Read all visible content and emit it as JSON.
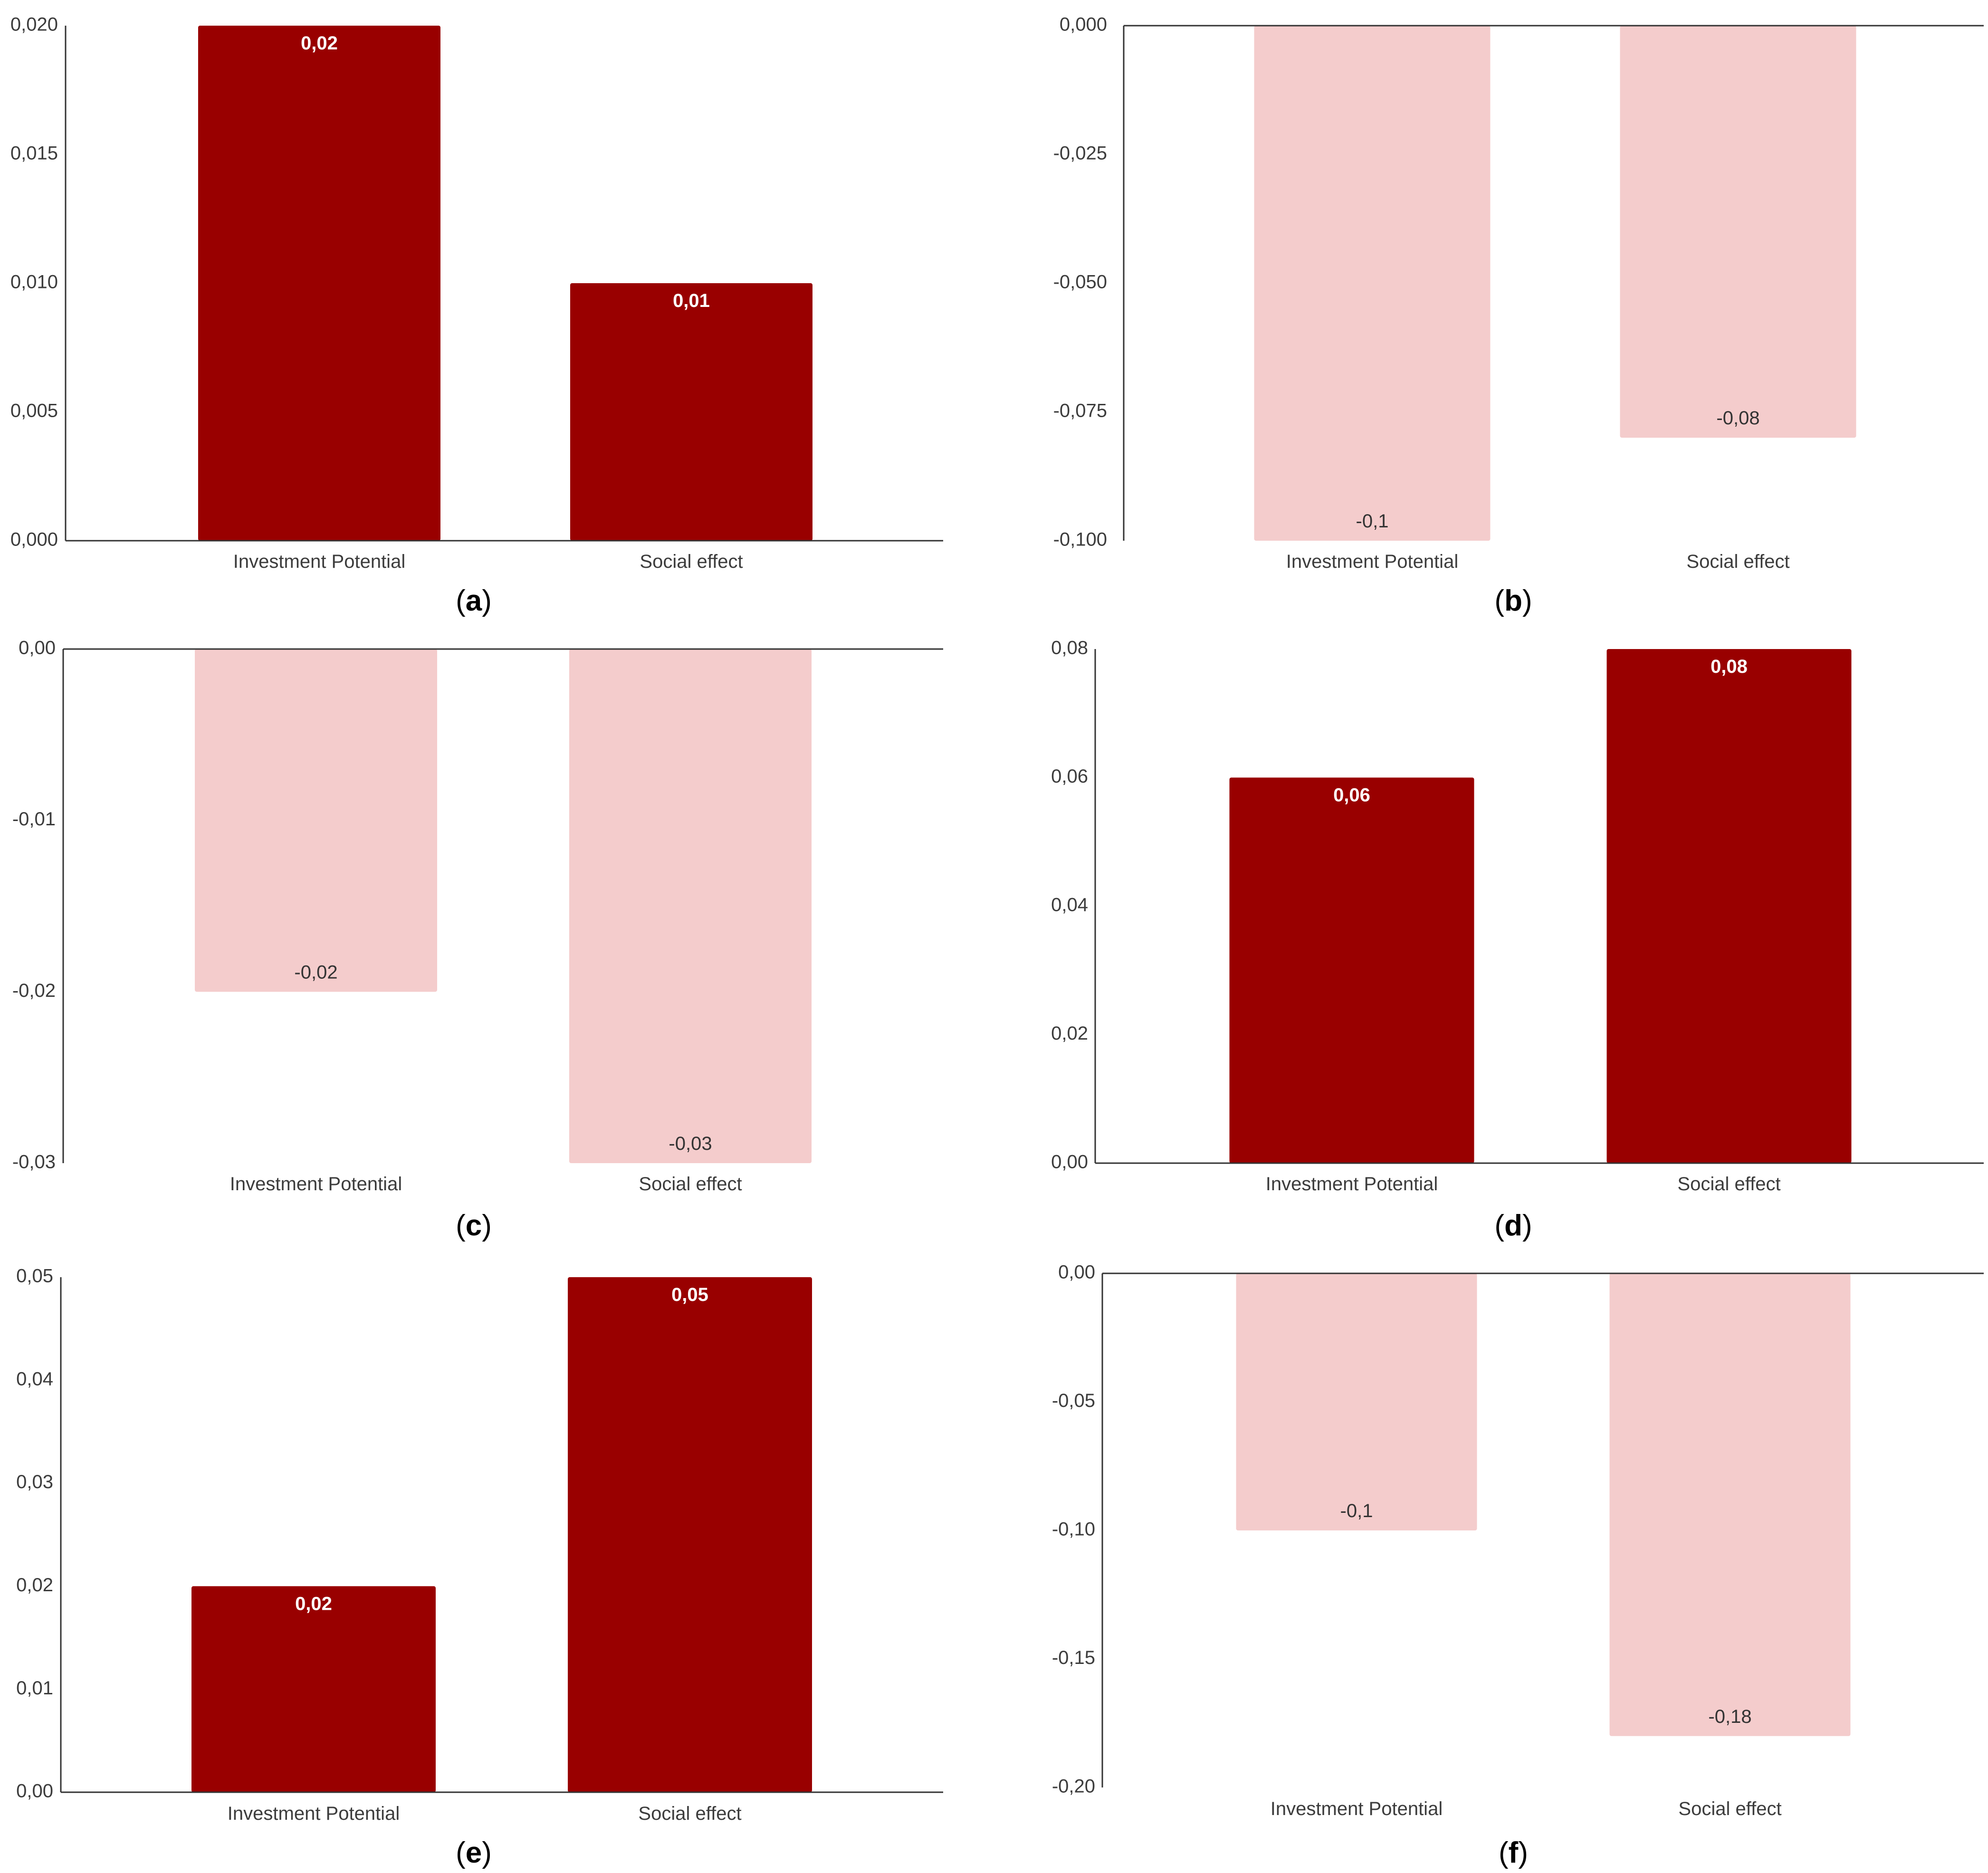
{
  "figure": {
    "colors": {
      "positive_bar": "#990000",
      "negative_bar": "#f4cccc",
      "positive_label": "#ffffff",
      "negative_label": "#333333",
      "axis": "#333333",
      "tick_text": "#3c3c3c",
      "caption": "#000000"
    }
  },
  "chart_data": [
    {
      "id": "a",
      "caption": "a",
      "type": "bar",
      "categories": [
        "Investment Potential",
        "Social effect"
      ],
      "values": [
        0.02,
        0.01
      ],
      "value_labels": [
        "0,02",
        "0,01"
      ],
      "ylim": [
        0,
        0.02
      ],
      "yticks": [
        0.02,
        0.015,
        0.01,
        0.005,
        0
      ],
      "ytick_labels": [
        "0,020",
        "0,015",
        "0,010",
        "0,005",
        "0,000"
      ]
    },
    {
      "id": "b",
      "caption": "b",
      "type": "bar",
      "categories": [
        "Investment Potential",
        "Social effect"
      ],
      "values": [
        -0.1,
        -0.08
      ],
      "value_labels": [
        "-0,1",
        "-0,08"
      ],
      "ylim": [
        -0.1,
        0
      ],
      "yticks": [
        0,
        -0.025,
        -0.05,
        -0.075,
        -0.1
      ],
      "ytick_labels": [
        "0,000",
        "-0,025",
        "-0,050",
        "-0,075",
        "-0,100"
      ]
    },
    {
      "id": "c",
      "caption": "c",
      "type": "bar",
      "categories": [
        "Investment Potential",
        "Social effect"
      ],
      "values": [
        -0.02,
        -0.03
      ],
      "value_labels": [
        "-0,02",
        "-0,03"
      ],
      "ylim": [
        -0.03,
        0
      ],
      "yticks": [
        0,
        -0.01,
        -0.02,
        -0.03
      ],
      "ytick_labels": [
        "0,00",
        "-0,01",
        "-0,02",
        "-0,03"
      ]
    },
    {
      "id": "d",
      "caption": "d",
      "type": "bar",
      "categories": [
        "Investment Potential",
        "Social effect"
      ],
      "values": [
        0.06,
        0.08
      ],
      "value_labels": [
        "0,06",
        "0,08"
      ],
      "ylim": [
        0,
        0.08
      ],
      "yticks": [
        0.08,
        0.06,
        0.04,
        0.02,
        0
      ],
      "ytick_labels": [
        "0,08",
        "0,06",
        "0,04",
        "0,02",
        "0,00"
      ]
    },
    {
      "id": "e",
      "caption": "e",
      "type": "bar",
      "categories": [
        "Investment Potential",
        "Social effect"
      ],
      "values": [
        0.02,
        0.05
      ],
      "value_labels": [
        "0,02",
        "0,05"
      ],
      "ylim": [
        0,
        0.05
      ],
      "yticks": [
        0.05,
        0.04,
        0.03,
        0.02,
        0.01,
        0
      ],
      "ytick_labels": [
        "0,05",
        "0,04",
        "0,03",
        "0,02",
        "0,01",
        "0,00"
      ]
    },
    {
      "id": "f",
      "caption": "f",
      "type": "bar",
      "categories": [
        "Investment Potential",
        "Social effect"
      ],
      "values": [
        -0.1,
        -0.18
      ],
      "value_labels": [
        "-0,1",
        "-0,18"
      ],
      "ylim": [
        -0.2,
        0
      ],
      "yticks": [
        0,
        -0.05,
        -0.1,
        -0.15,
        -0.2
      ],
      "ytick_labels": [
        "0,00",
        "-0,05",
        "-0,10",
        "-0,15",
        "-0,20"
      ]
    }
  ]
}
